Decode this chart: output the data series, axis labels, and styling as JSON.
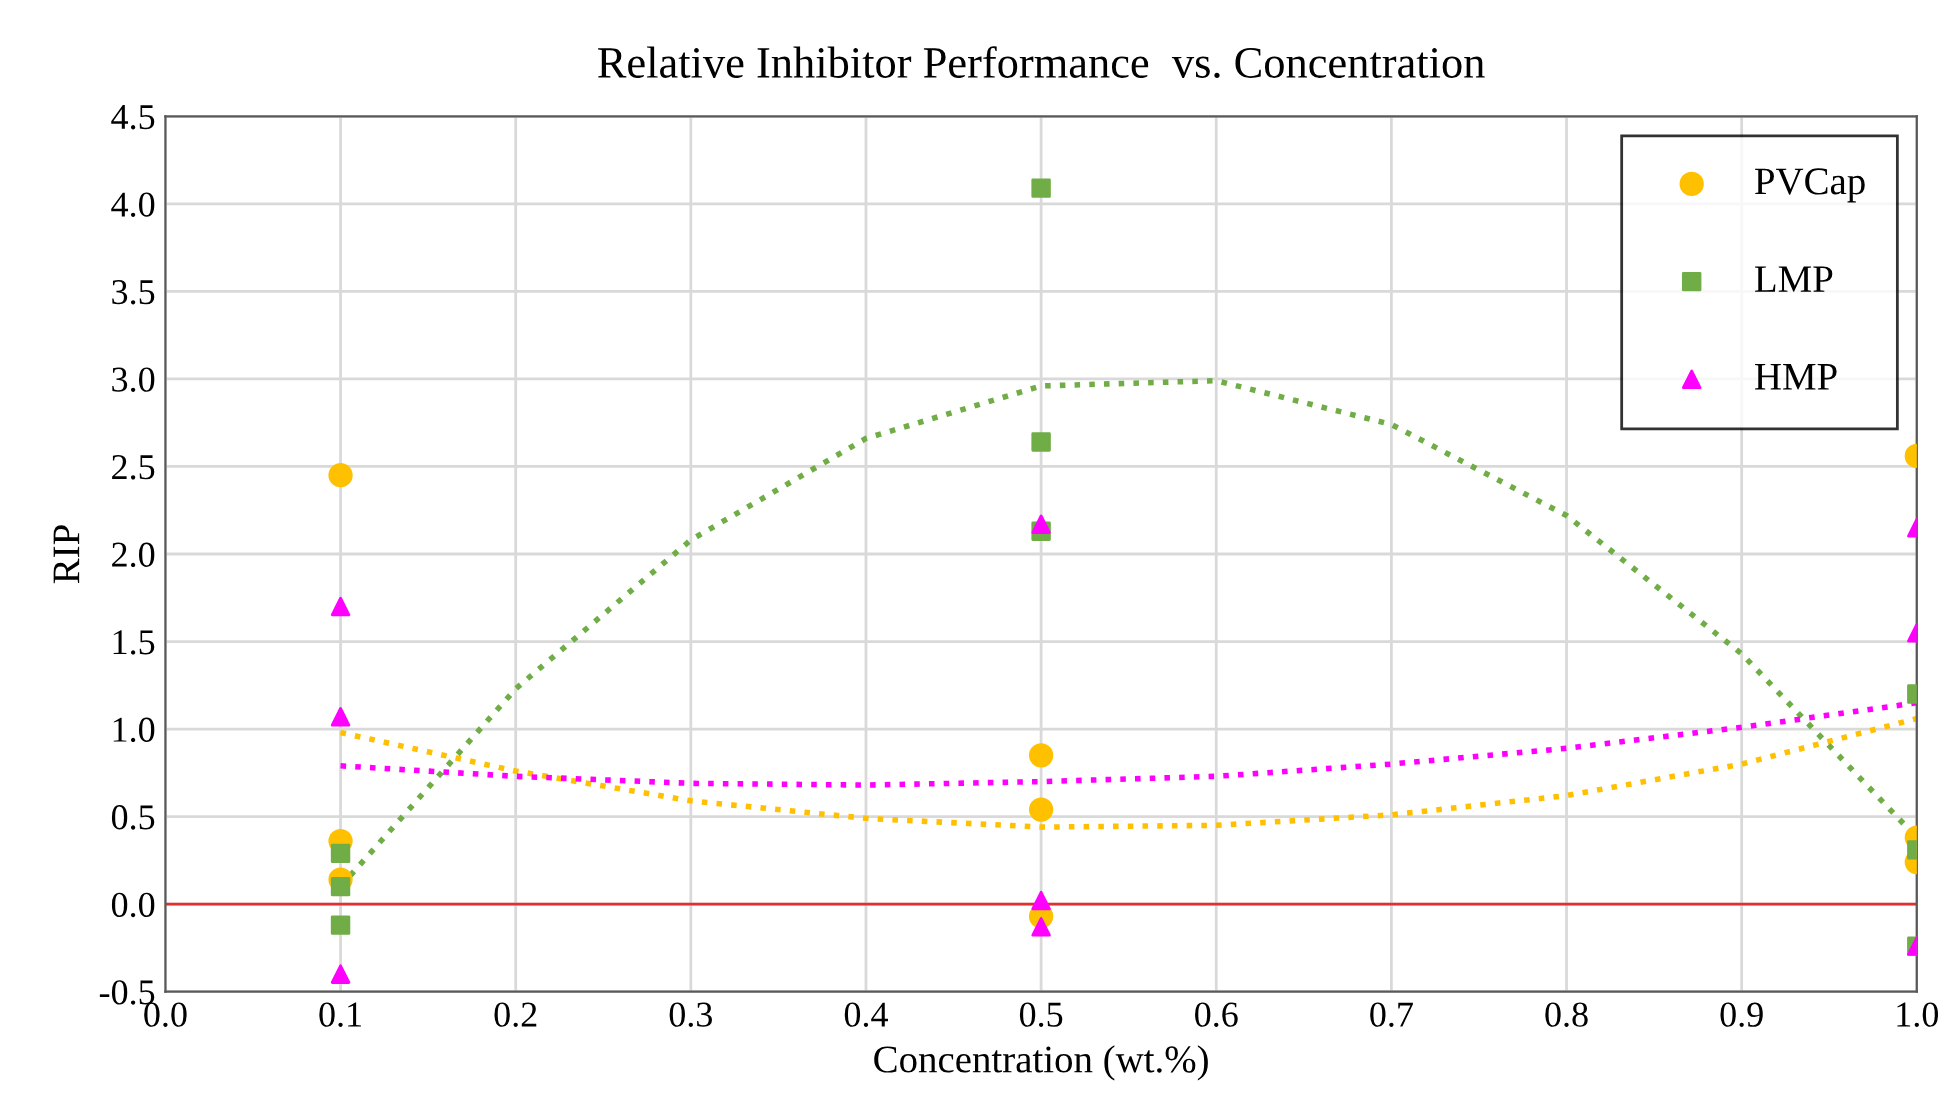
{
  "chart_data": {
    "type": "scatter",
    "title": "Relative Inhibitor Performance  vs. Concentration",
    "xlabel": "Concentration (wt.%)",
    "ylabel": "RIP",
    "xlim": [
      0.0,
      1.0
    ],
    "xticks": [
      {
        "value": 0,
        "label": "0.0"
      },
      0.1,
      0.2,
      0.3,
      0.4,
      0.5,
      0.6,
      0.7,
      0.8,
      0.9,
      {
        "value": 1,
        "label": "1.0"
      }
    ],
    "ylim": [
      -0.5,
      4.5
    ],
    "yticks": [
      -0.5,
      {
        "value": 0,
        "label": "0.0"
      },
      0.5,
      {
        "value": 1,
        "label": "1.0"
      },
      1.5,
      {
        "value": 2,
        "label": "2.0"
      },
      2.5,
      {
        "value": 3,
        "label": "3.0"
      },
      3.5,
      {
        "value": 4,
        "label": "4.0"
      },
      4.5
    ],
    "grid": true,
    "legend": "top right",
    "ref_lines": [
      {
        "axis": "y",
        "value": 0,
        "color": "#e03030"
      }
    ],
    "series": [
      {
        "name": "PVCap",
        "color": "#ffc000",
        "marker": "circle",
        "x": [
          0.1,
          0.1,
          0.1,
          0.5,
          0.5,
          0.5,
          1.0,
          1.0,
          1.0
        ],
        "values": [
          2.45,
          0.36,
          0.14,
          0.85,
          0.54,
          -0.07,
          2.56,
          0.38,
          0.24
        ]
      },
      {
        "name": "LMP",
        "color": "#70ad47",
        "marker": "square",
        "x": [
          0.1,
          0.1,
          0.1,
          0.5,
          0.5,
          0.5,
          1.0,
          1.0,
          1.0
        ],
        "values": [
          0.29,
          0.1,
          -0.12,
          4.09,
          2.64,
          2.13,
          1.2,
          0.31,
          -0.24
        ]
      },
      {
        "name": "HMP",
        "color": "#ff00ff",
        "marker": "triangle",
        "x": [
          0.1,
          0.1,
          0.1,
          0.5,
          0.5,
          0.5,
          1.0,
          1.0,
          1.0
        ],
        "values": [
          1.7,
          1.07,
          -0.4,
          2.17,
          0.02,
          -0.13,
          2.15,
          1.55,
          -0.24
        ]
      },
      {
        "type": "line",
        "line_style": "dotted",
        "marker": "none",
        "color": "#ffc000",
        "x": [
          0.1,
          0.2,
          0.3,
          0.4,
          0.5,
          0.6,
          0.7,
          0.8,
          0.9,
          1.0
        ],
        "values": [
          0.98,
          0.76,
          0.59,
          0.49,
          0.44,
          0.45,
          0.51,
          0.62,
          0.8,
          1.06
        ]
      },
      {
        "type": "line",
        "line_style": "dotted",
        "marker": "none",
        "color": "#70ad47",
        "x": [
          0.1,
          0.2,
          0.3,
          0.4,
          0.5,
          0.6,
          0.7,
          0.8,
          0.9,
          1.0
        ],
        "values": [
          0.1,
          1.23,
          2.08,
          2.66,
          2.96,
          2.99,
          2.74,
          2.22,
          1.43,
          0.38
        ]
      },
      {
        "type": "line",
        "line_style": "dotted",
        "marker": "none",
        "color": "#ff00ff",
        "x": [
          0.1,
          0.2,
          0.3,
          0.4,
          0.5,
          0.6,
          0.7,
          0.8,
          0.9,
          1.0
        ],
        "values": [
          0.79,
          0.73,
          0.69,
          0.68,
          0.7,
          0.73,
          0.8,
          0.89,
          1.01,
          1.15
        ]
      }
    ]
  }
}
